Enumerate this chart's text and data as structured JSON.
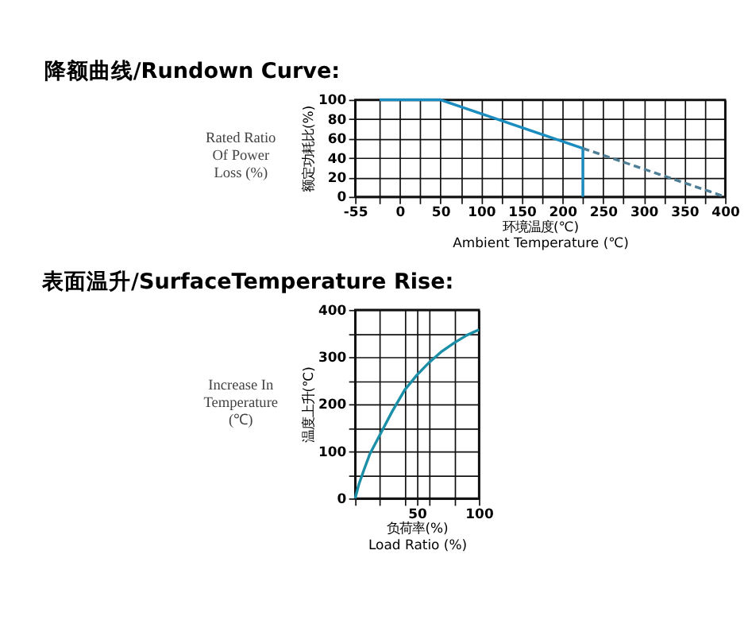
{
  "chart_data": [
    {
      "type": "line",
      "title": "降额曲线/Rundown Curve:",
      "xlabel": "环境温度(℃)\nAmbient Temperature (℃)",
      "ylabel": "额定功耗比(%)",
      "annotations": [
        "Rated Ratio\nOf  Power\nLoss (%)"
      ],
      "xlim": [
        -55,
        400
      ],
      "xticks": [
        -55,
        {
          "value": -25,
          "label": null
        },
        0,
        {
          "value": 25,
          "label": null
        },
        50,
        {
          "value": 75,
          "label": null
        },
        100,
        {
          "value": 125,
          "label": null
        },
        150,
        {
          "value": 175,
          "label": null
        },
        200,
        {
          "value": 225,
          "label": null
        },
        250,
        {
          "value": 275,
          "label": null
        },
        300,
        {
          "value": 325,
          "label": null
        },
        350,
        {
          "value": 375,
          "label": null
        },
        400
      ],
      "ylim": [
        0,
        100
      ],
      "yticks": [
        0,
        20,
        40,
        60,
        80,
        100
      ],
      "grid": true,
      "marker": "none",
      "series": [
        {
          "color": "#1b8cbf",
          "line_style": "solid",
          "x": [
            -25,
            50,
            225,
            225
          ],
          "values": [
            100,
            100,
            50,
            0
          ]
        },
        {
          "color": "#4f7f96",
          "line_style": "dashed",
          "x": [
            225,
            400
          ],
          "values": [
            50,
            0
          ]
        }
      ]
    },
    {
      "type": "line",
      "title": "表面温升/SurfaceTemperature Rise:",
      "xlabel": "负荷率(%)\nLoad Ratio (%)",
      "ylabel": "温度上升(℃)",
      "annotations": [
        "Increase In\nTemperature\n(℃)"
      ],
      "xlim": [
        0,
        100
      ],
      "xticks": [
        {
          "value": 0,
          "label": null
        },
        {
          "value": 20,
          "label": null
        },
        {
          "value": 40,
          "label": null
        },
        50,
        {
          "value": 60,
          "label": null
        },
        {
          "value": 80,
          "label": null
        },
        100
      ],
      "ylim": [
        0,
        400
      ],
      "yticks": [
        0,
        {
          "value": 50,
          "label": null
        },
        100,
        {
          "value": 150,
          "label": null
        },
        200,
        {
          "value": 250,
          "label": null
        },
        300,
        {
          "value": 350,
          "label": null
        },
        400
      ],
      "grid": true,
      "marker": "none",
      "series": [
        {
          "color": "#1b8fa8",
          "line_style": "solid",
          "x": [
            0,
            3,
            7,
            12,
            20,
            30,
            40,
            50,
            60,
            70,
            80,
            90,
            100
          ],
          "values": [
            0,
            30,
            60,
            95,
            135,
            185,
            230,
            262,
            289,
            312,
            330,
            346,
            358
          ]
        }
      ]
    }
  ]
}
